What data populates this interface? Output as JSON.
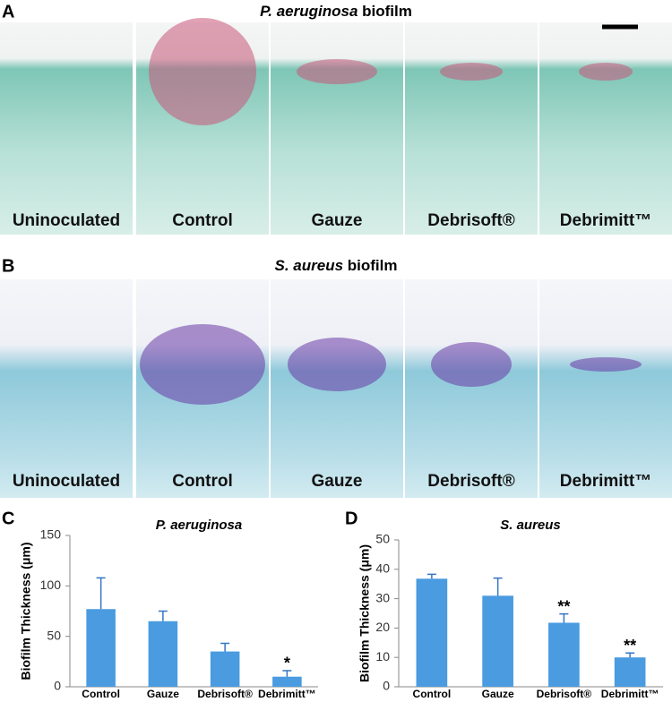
{
  "panels": [
    {
      "letter": "A",
      "title_species": "P. aeruginosa",
      "title_suffix": " biofilm",
      "labels": [
        "Uninoculated",
        "Control",
        "Gauze",
        "Debrisoft®",
        "Debrimitt™"
      ]
    },
    {
      "letter": "B",
      "title_species": "S. aureus",
      "title_suffix": " biofilm",
      "labels": [
        "Uninoculated",
        "Control",
        "Gauze",
        "Debrisoft®",
        "Debrimitt™"
      ]
    }
  ],
  "chart_data": [
    {
      "type": "bar",
      "letter": "C",
      "title": "P. aeruginosa",
      "y_label": "Biofilm Thickness (μm)",
      "categories": [
        "Control",
        "Gauze",
        "Debrisoft®",
        "Debrimitt™"
      ],
      "series": [
        {
          "name": "P. aeruginosa",
          "color": "#4a9be0",
          "values": [
            77,
            65,
            35,
            10
          ],
          "errors": [
            31,
            10,
            8,
            6
          ]
        }
      ],
      "significance": [
        null,
        null,
        null,
        "*"
      ],
      "ylim": [
        0,
        150
      ],
      "yticks": [
        0,
        50,
        100,
        150
      ]
    },
    {
      "type": "bar",
      "letter": "D",
      "title": "S. aureus",
      "y_label": "Biofilm Thickness (μm)",
      "categories": [
        "Control",
        "Gauze",
        "Debrisoft®",
        "Debrimitt™"
      ],
      "series": [
        {
          "name": "S. aureus",
          "color": "#4a9be0",
          "values": [
            36.8,
            31,
            21.8,
            10
          ],
          "errors": [
            1.5,
            6,
            3,
            1.5
          ]
        }
      ],
      "significance": [
        null,
        null,
        "**",
        "**"
      ],
      "ylim": [
        0,
        50
      ],
      "yticks": [
        0,
        10,
        20,
        30,
        40,
        50
      ]
    }
  ]
}
